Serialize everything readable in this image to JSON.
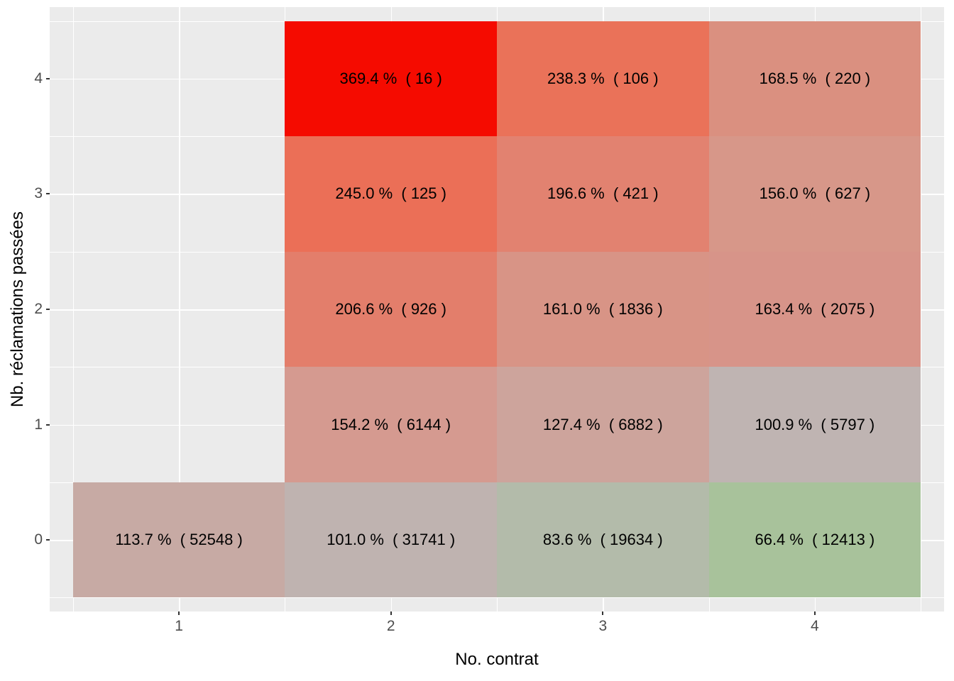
{
  "chart_data": {
    "type": "heatmap",
    "title": "",
    "xlabel": "No. contrat",
    "ylabel": "Nb. réclamations passées",
    "x_ticks": [
      "1",
      "2",
      "3",
      "4"
    ],
    "y_ticks": [
      "0",
      "1",
      "2",
      "3",
      "4"
    ],
    "x_range": [
      0.39,
      4.61
    ],
    "y_range": [
      -0.62,
      4.62
    ],
    "panel_background": "#ebebeb",
    "grid_color": "#ffffff",
    "cell_text_color": "#000000",
    "tick_label_color": "#4d4d4d",
    "axis_title_color": "#000000",
    "legend": "none",
    "grid": true,
    "cells": [
      {
        "x": 2,
        "y": 4,
        "pct": 369.4,
        "count": 16,
        "color": "#f50b00",
        "label": "369.4 %  ( 16 )"
      },
      {
        "x": 3,
        "y": 4,
        "pct": 238.3,
        "count": 106,
        "color": "#ea7259",
        "label": "238.3 %  ( 106 )"
      },
      {
        "x": 4,
        "y": 4,
        "pct": 168.5,
        "count": 220,
        "color": "#da9080",
        "label": "168.5 %  ( 220 )"
      },
      {
        "x": 2,
        "y": 3,
        "pct": 245.0,
        "count": 125,
        "color": "#eb6f57",
        "label": "245.0 %  ( 125 )"
      },
      {
        "x": 3,
        "y": 3,
        "pct": 196.6,
        "count": 421,
        "color": "#e28270",
        "label": "196.6 %  ( 421 )"
      },
      {
        "x": 4,
        "y": 3,
        "pct": 156.0,
        "count": 627,
        "color": "#d79789",
        "label": "156.0 %  ( 627 )"
      },
      {
        "x": 2,
        "y": 2,
        "pct": 206.6,
        "count": 926,
        "color": "#e37e6b",
        "label": "206.6 %  ( 926 )"
      },
      {
        "x": 3,
        "y": 2,
        "pct": 161.0,
        "count": 1836,
        "color": "#d89486",
        "label": "161.0 %  ( 1836 )"
      },
      {
        "x": 4,
        "y": 2,
        "pct": 163.4,
        "count": 2075,
        "color": "#d79489",
        "label": "163.4 %  ( 2075 )"
      },
      {
        "x": 2,
        "y": 1,
        "pct": 154.2,
        "count": 6144,
        "color": "#d59a90",
        "label": "154.2 %  ( 6144 )"
      },
      {
        "x": 3,
        "y": 1,
        "pct": 127.4,
        "count": 6882,
        "color": "#cda49c",
        "label": "127.4 %  ( 6882 )"
      },
      {
        "x": 4,
        "y": 1,
        "pct": 100.9,
        "count": 5797,
        "color": "#bfb4b2",
        "label": "100.9 %  ( 5797 )"
      },
      {
        "x": 1,
        "y": 0,
        "pct": 113.7,
        "count": 52548,
        "color": "#c7aaa4",
        "label": "113.7 %  ( 52548 )"
      },
      {
        "x": 2,
        "y": 0,
        "pct": 101.0,
        "count": 31741,
        "color": "#bfb3b0",
        "label": "101.0 %  ( 31741 )"
      },
      {
        "x": 3,
        "y": 0,
        "pct": 83.6,
        "count": 19634,
        "color": "#b3bbaa",
        "label": "83.6 %  ( 19634 )"
      },
      {
        "x": 4,
        "y": 0,
        "pct": 66.4,
        "count": 12413,
        "color": "#a8c29b",
        "label": "66.4 %  ( 12413 )"
      }
    ],
    "minor_grid_x": [
      0.5,
      1.5,
      2.5,
      3.5,
      4.5
    ],
    "minor_grid_y": [
      -0.5,
      0.5,
      1.5,
      2.5,
      3.5,
      4.5
    ]
  }
}
